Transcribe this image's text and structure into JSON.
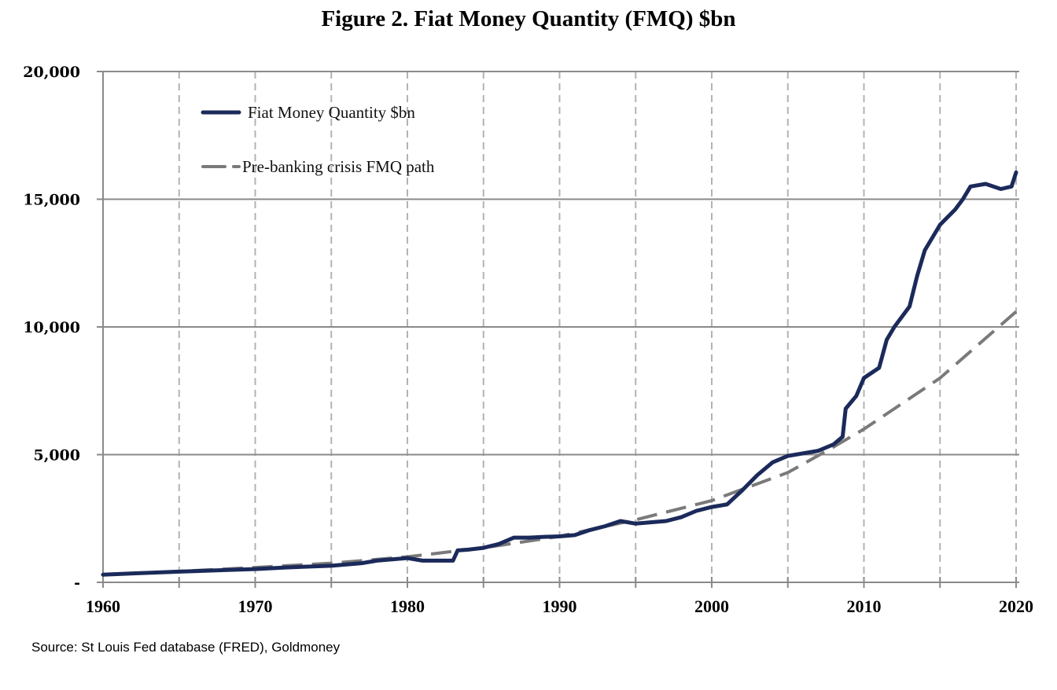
{
  "chart_data": {
    "type": "line",
    "title": "Figure 2. Fiat Money Quantity (FMQ)  $bn",
    "xlabel": "",
    "ylabel": "",
    "xlim": [
      1960,
      2020
    ],
    "ylim": [
      0,
      20000
    ],
    "x_ticks": [
      1960,
      1970,
      1980,
      1990,
      2000,
      2010,
      2020
    ],
    "x_tick_labels": [
      "1960",
      "1970",
      "1980",
      "1990",
      "2000",
      "2010",
      "2020"
    ],
    "x_minor_gridlines": [
      1965,
      1970,
      1975,
      1980,
      1985,
      1990,
      1995,
      2000,
      2005,
      2010,
      2015,
      2020
    ],
    "y_ticks": [
      0,
      5000,
      10000,
      15000,
      20000
    ],
    "y_tick_labels": [
      "-",
      "5,000",
      "10,000",
      "15,000",
      "20,000"
    ],
    "grid": {
      "horizontal": true,
      "vertical_dashed": true
    },
    "legend_position": "top-left",
    "series": [
      {
        "name": "Fiat Money Quantity $bn",
        "color": "#1b2a5a",
        "style": "solid",
        "x": [
          1960,
          1962,
          1965,
          1968,
          1970,
          1972,
          1975,
          1977,
          1978,
          1980,
          1981,
          1982,
          1983,
          1983.3,
          1984,
          1985,
          1986,
          1987,
          1988,
          1989,
          1990,
          1991,
          1992,
          1993,
          1994,
          1995,
          1996,
          1997,
          1998,
          1999,
          2000,
          2001,
          2002,
          2003,
          2004,
          2005,
          2006,
          2007,
          2008,
          2008.6,
          2008.8,
          2009.5,
          2010,
          2011,
          2011.5,
          2012,
          2013,
          2013.5,
          2014,
          2015,
          2016,
          2016.5,
          2017,
          2018,
          2019,
          2019.7,
          2020
        ],
        "y": [
          300,
          350,
          420,
          480,
          520,
          580,
          650,
          750,
          850,
          950,
          850,
          850,
          850,
          1250,
          1280,
          1350,
          1500,
          1750,
          1750,
          1780,
          1800,
          1850,
          2050,
          2200,
          2400,
          2300,
          2350,
          2400,
          2550,
          2800,
          2950,
          3050,
          3600,
          4200,
          4700,
          4950,
          5050,
          5150,
          5400,
          5700,
          6800,
          7300,
          8000,
          8400,
          9500,
          10000,
          10800,
          12000,
          13000,
          14000,
          14600,
          15000,
          15500,
          15600,
          15400,
          15500,
          16050
        ]
      },
      {
        "name": "Pre-banking crisis FMQ path",
        "color": "#7a7a7a",
        "style": "dashed",
        "x": [
          1960,
          1965,
          1970,
          1975,
          1980,
          1985,
          1990,
          1995,
          2000,
          2005,
          2008,
          2010,
          2015,
          2020
        ],
        "y": [
          300,
          430,
          580,
          750,
          1000,
          1350,
          1800,
          2450,
          3200,
          4300,
          5300,
          6000,
          8000,
          10600
        ]
      }
    ]
  },
  "source_note": "Source: St Louis Fed  database (FRED), Goldmoney"
}
